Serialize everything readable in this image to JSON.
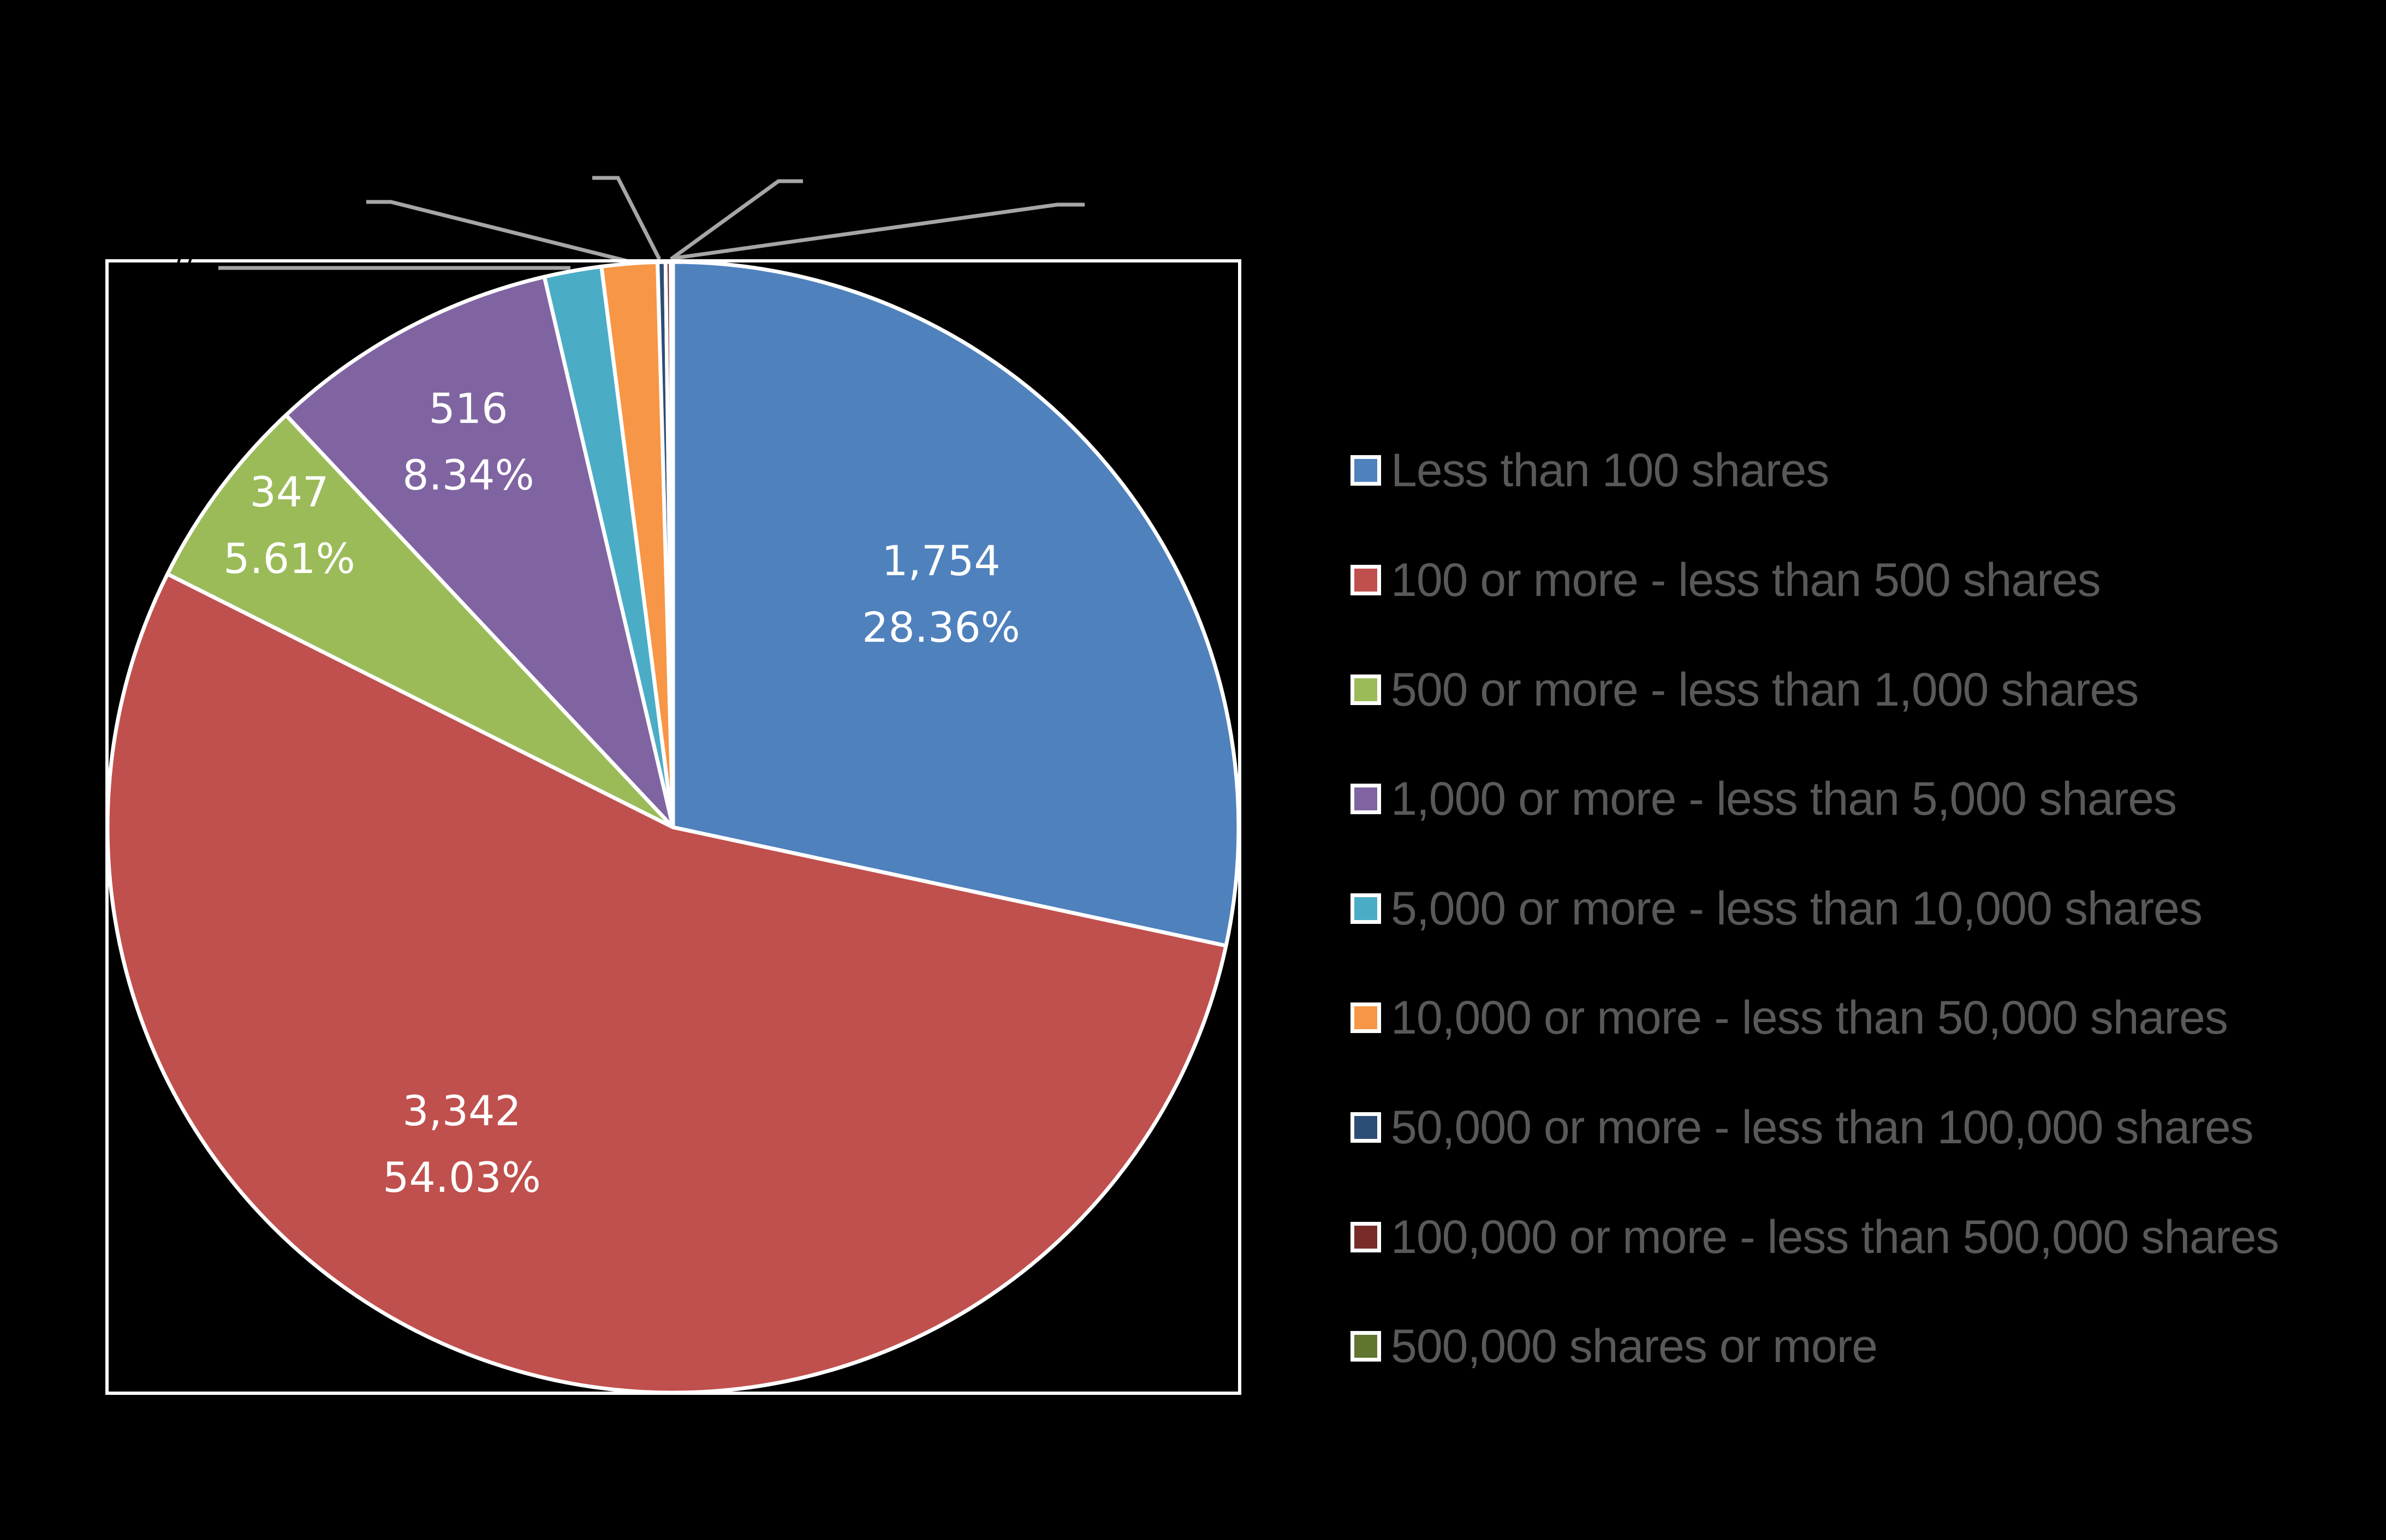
{
  "chart_data": {
    "type": "pie",
    "title": "",
    "start_angle_deg": 0,
    "direction": "clockwise",
    "total": 6185,
    "categories": [
      "Less than 100 shares",
      "100 or more - less than 500 shares",
      "500 or more - less than 1,000 shares",
      "1,000 or more - less than 5,000 shares",
      "5,000 or more - less than 10,000 shares",
      "10,000 or more - less than 50,000 shares",
      "50,000 or more - less than 100,000 shares",
      "100,000 or more - less than 500,000 shares",
      "500,000 shares or more"
    ],
    "values": [
      1754,
      3342,
      347,
      516,
      101,
      98,
      14,
      9,
      4
    ],
    "percentages": [
      28.36,
      54.03,
      5.61,
      8.34,
      1.63,
      1.58,
      0.23,
      0.15,
      0.06
    ],
    "slices": [
      {
        "label": "Less than 100 shares",
        "value": 1754,
        "value_text": "1,754",
        "percent_text": "28.36%",
        "color": "#4f81bd",
        "label_visible": true
      },
      {
        "label": "100 or more - less than 500 shares",
        "value": 3342,
        "value_text": "3,342",
        "percent_text": "54.03%",
        "color": "#c0504d",
        "label_visible": true
      },
      {
        "label": "500 or more - less than 1,000 shares",
        "value": 347,
        "value_text": "347",
        "percent_text": "5.61%",
        "color": "#9bbb59",
        "label_visible": true
      },
      {
        "label": "1,000 or more - less than 5,000 shares",
        "value": 516,
        "value_text": "516",
        "percent_text": "8.34%",
        "color": "#8064a2",
        "label_visible": true
      },
      {
        "label": "5,000 or more - less than 10,000 shares",
        "value": 101,
        "color": "#4bacc6",
        "label_visible": false
      },
      {
        "label": "10,000 or more - less than 50,000 shares",
        "value": 98,
        "color": "#f79646",
        "label_visible": false
      },
      {
        "label": "50,000 or more - less than 100,000 shares",
        "value": 14,
        "color": "#2c4d75",
        "label_visible": false
      },
      {
        "label": "100,000 or more - less than 500,000 shares",
        "value": 9,
        "color": "#772c2a",
        "label_visible": false
      },
      {
        "label": "500,000 shares or more",
        "value": 4,
        "color": "#5f7530",
        "label_visible": false
      }
    ],
    "legend": {
      "position": "right",
      "text_color": "#595959"
    },
    "background": "#000000",
    "slice_border_color": "#ffffff",
    "leader_line_color": "#a6a6a6"
  },
  "labels": {
    "slice0": {
      "value": "1,754",
      "percent": "28.36%"
    },
    "slice1": {
      "value": "3,342",
      "percent": "54.03%"
    },
    "slice2": {
      "value": "347",
      "percent": "5.61%"
    },
    "slice3": {
      "value": "516",
      "percent": "8.34%"
    }
  },
  "legend_items": [
    {
      "label": "Less than 100 shares",
      "color": "#4f81bd"
    },
    {
      "label": "100 or more - less than 500 shares",
      "color": "#c0504d"
    },
    {
      "label": "500 or more - less than 1,000 shares",
      "color": "#9bbb59"
    },
    {
      "label": "1,000 or more - less than 5,000 shares",
      "color": "#8064a2"
    },
    {
      "label": "5,000 or more - less than 10,000 shares",
      "color": "#4bacc6"
    },
    {
      "label": "10,000 or more - less than 50,000 shares",
      "color": "#f79646"
    },
    {
      "label": "50,000 or more - less than 100,000 shares",
      "color": "#2c4d75"
    },
    {
      "label": "100,000 or more - less than 500,000 shares",
      "color": "#772c2a"
    },
    {
      "label": "500,000 shares or more",
      "color": "#5f7530"
    }
  ]
}
